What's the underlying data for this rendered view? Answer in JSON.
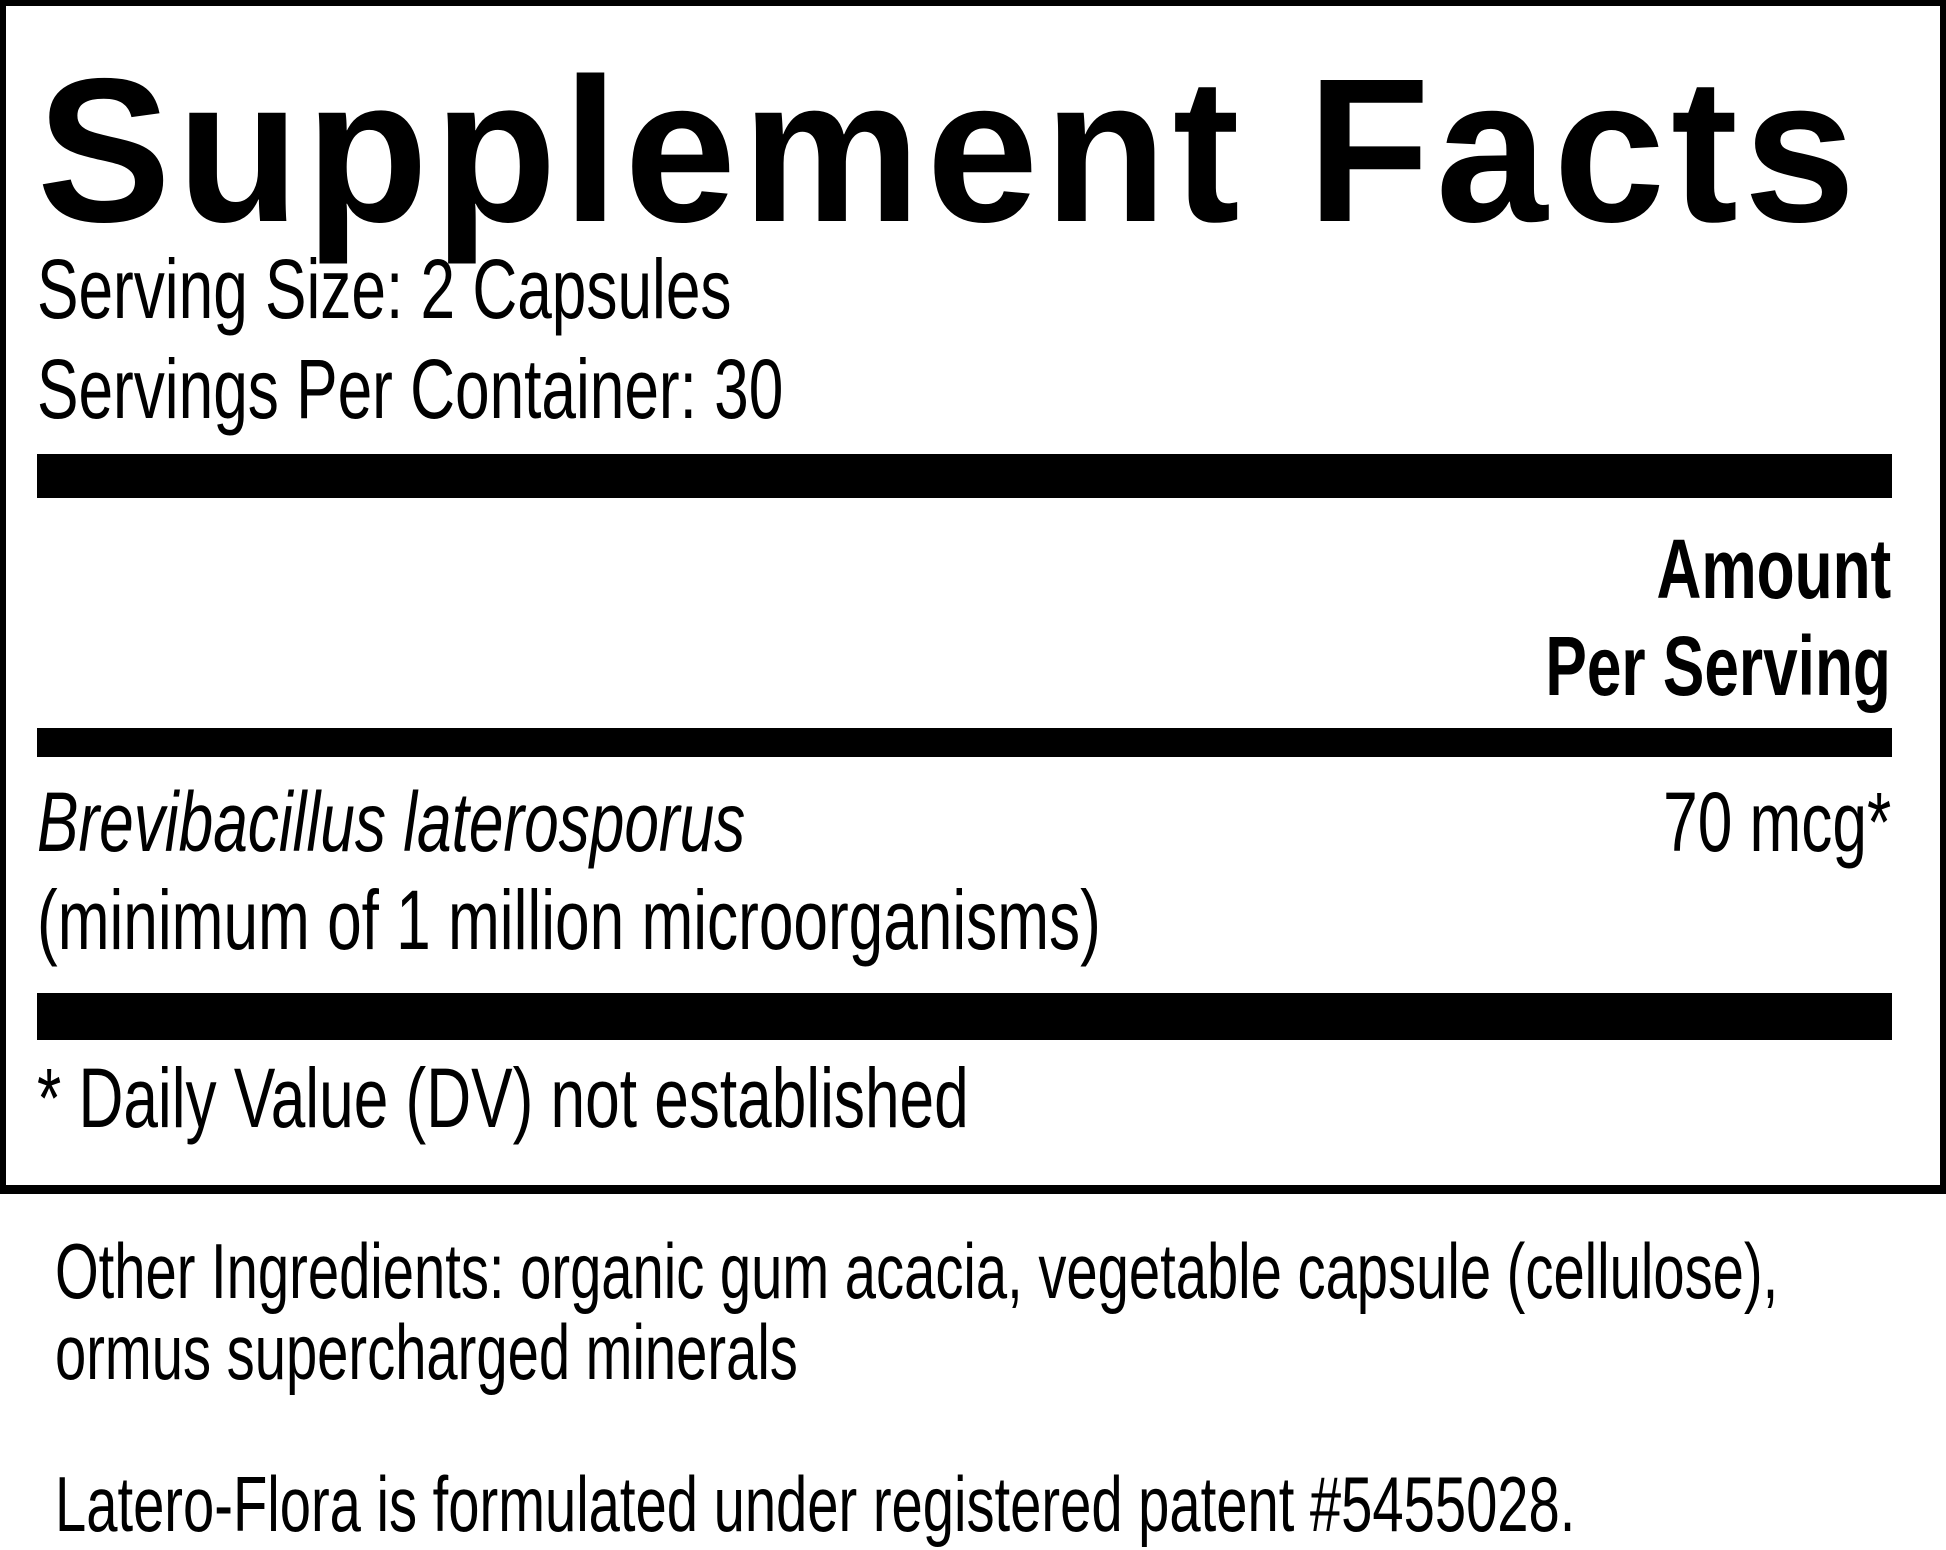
{
  "title": "Supplement Facts",
  "serving_size": "Serving Size: 2 Capsules",
  "servings_per_container": "Servings Per Container: 30",
  "header": {
    "amount_line1": "Amount",
    "amount_line2": "Per Serving"
  },
  "ingredients": [
    {
      "name": "Brevibacillus laterosporus",
      "detail": "(minimum of 1 million microorganisms)",
      "amount": "70 mcg*"
    }
  ],
  "footnote": "* Daily Value (DV) not established",
  "other_ingredients": {
    "line1": "Other Ingredients: organic gum acacia, vegetable capsule (cellulose),",
    "line2": "ormus supercharged minerals"
  },
  "patent_note": "Latero-Flora is formulated under registered patent #5455028."
}
